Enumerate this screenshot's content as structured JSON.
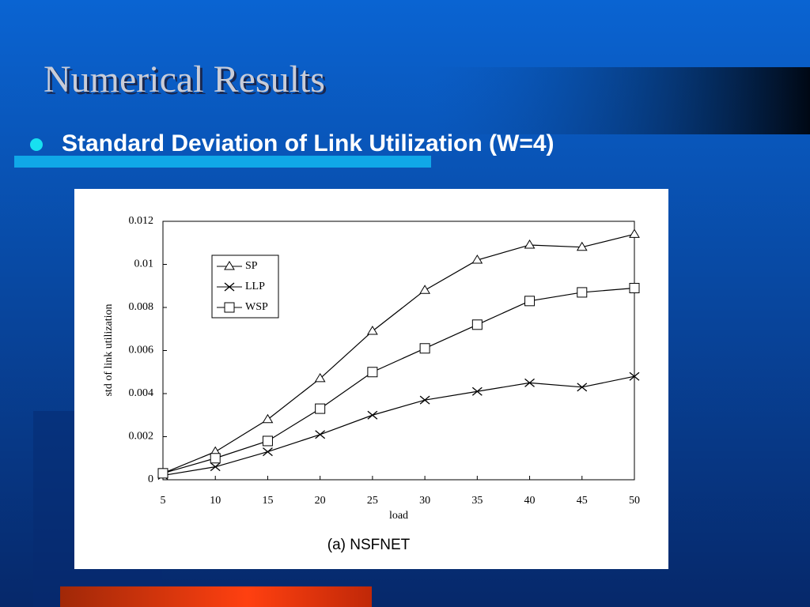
{
  "slide": {
    "title": "Numerical Results",
    "bullet": "Standard Deviation of Link Utilization (W=4)"
  },
  "chart_data": {
    "type": "line",
    "caption": "(a) NSFNET",
    "xlabel": "load",
    "ylabel": "std of link utilization",
    "x": [
      5,
      10,
      15,
      20,
      25,
      30,
      35,
      40,
      45,
      50
    ],
    "xlim": [
      5,
      50
    ],
    "xticks": [
      5,
      10,
      15,
      20,
      25,
      30,
      35,
      40,
      45,
      50
    ],
    "ylim": [
      0,
      0.012
    ],
    "yticks": [
      0,
      0.002,
      0.004,
      0.006,
      0.008,
      0.01,
      0.012
    ],
    "grid": false,
    "legend": "upper left",
    "series": [
      {
        "name": "SP",
        "color": "#000000",
        "marker": "triangle",
        "values": [
          0.0003,
          0.0013,
          0.0028,
          0.0047,
          0.0069,
          0.0088,
          0.0102,
          0.0109,
          0.0108,
          0.0114
        ]
      },
      {
        "name": "LLP",
        "color": "#000000",
        "marker": "x",
        "values": [
          0.0002,
          0.0006,
          0.0013,
          0.0021,
          0.003,
          0.0037,
          0.0041,
          0.0045,
          0.0043,
          0.0048
        ]
      },
      {
        "name": "WSP",
        "color": "#000000",
        "marker": "square",
        "values": [
          0.0003,
          0.001,
          0.0018,
          0.0033,
          0.005,
          0.0061,
          0.0072,
          0.0083,
          0.0087,
          0.0089
        ]
      }
    ]
  }
}
